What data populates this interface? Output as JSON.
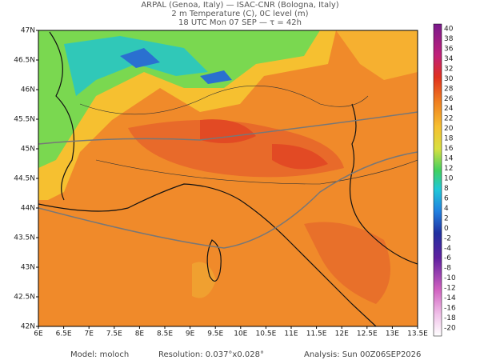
{
  "header": {
    "line1": "ARPAL (Genoa, Italy)  —  ISAC-CNR (Bologna, Italy)",
    "line2": "2 m Temperature (C), 0C level (m)",
    "line3": "18 UTC Mon 07 SEP  —  τ = 42h"
  },
  "map": {
    "lat_labels": [
      "47N",
      "46.5N",
      "46N",
      "45.5N",
      "45N",
      "44.5N",
      "44N",
      "43.5N",
      "43N",
      "42.5N",
      "42N"
    ],
    "lon_labels": [
      "6E",
      "6.5E",
      "7E",
      "7.5E",
      "8E",
      "8.5E",
      "9E",
      "9.5E",
      "10E",
      "10.5E",
      "11E",
      "11.5E",
      "12E",
      "12.5E",
      "13E",
      "13.5E"
    ]
  },
  "colorbar": {
    "labels": [
      "40",
      "38",
      "36",
      "34",
      "32",
      "30",
      "28",
      "26",
      "24",
      "22",
      "20",
      "18",
      "16",
      "14",
      "12",
      "10",
      "8",
      "6",
      "4",
      "2",
      "0",
      "-2",
      "-4",
      "-6",
      "-8",
      "-10",
      "-12",
      "-14",
      "-16",
      "-18",
      "-20"
    ]
  },
  "footer": {
    "model": "Model: moloch",
    "resolution": "Resolution: 0.037°x0.028°",
    "analysis": "Analysis: Sun 00Z06SEP2026"
  }
}
